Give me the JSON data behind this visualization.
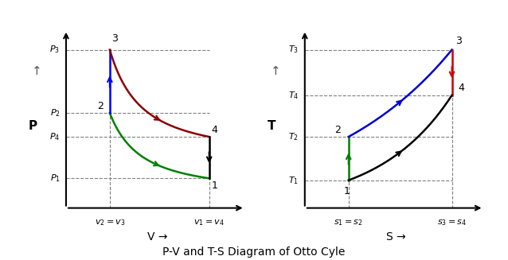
{
  "title": "P-V and T-S Diagram of Otto Cyle",
  "title_fontsize": 10,
  "title_fontweight": "normal",
  "pv": {
    "xlabel": "V →",
    "ylabel": "P",
    "v2": 0.22,
    "v1": 0.72,
    "p1": 0.15,
    "p2": 0.48,
    "p3": 0.8,
    "p4": 0.36,
    "colors": {
      "blue": "#0000FF",
      "darkred": "#8B0000",
      "black": "#000000",
      "green": "#008000"
    }
  },
  "ts": {
    "xlabel": "S →",
    "ylabel": "T",
    "s1": 0.22,
    "s3": 0.74,
    "t1": 0.14,
    "t2": 0.36,
    "t3": 0.8,
    "t4": 0.57,
    "colors": {
      "green": "#008000",
      "blue": "#0000CD",
      "red": "#CC0000",
      "black": "#000000"
    }
  },
  "background": "#FFFFFF",
  "dash_color": "#808080",
  "dash_lw": 0.8,
  "curve_lw": 1.8,
  "gamma": 1.4
}
